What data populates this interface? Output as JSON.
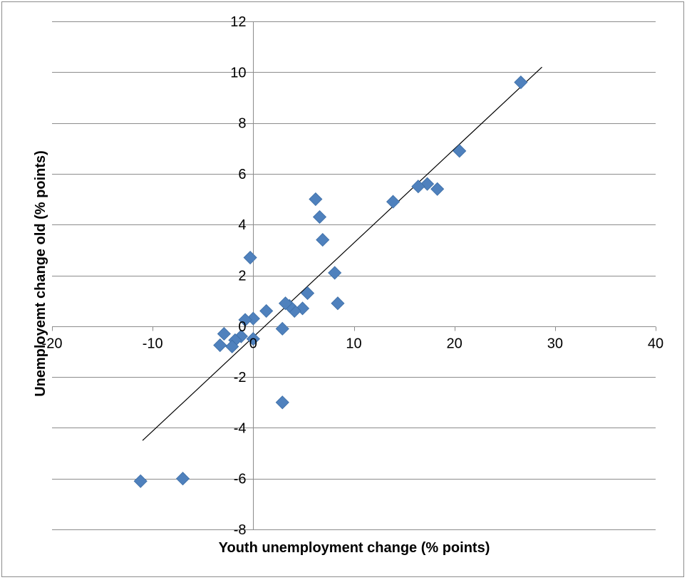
{
  "chart_data": {
    "type": "scatter",
    "xlabel": "Youth unemployment change (% points)",
    "ylabel": "Unemployemt change old (% points)",
    "xlim": [
      -20,
      40
    ],
    "ylim": [
      -8,
      12
    ],
    "x_ticks": [
      -20,
      -10,
      0,
      10,
      20,
      30,
      40
    ],
    "y_ticks": [
      -8,
      -6,
      -4,
      -2,
      0,
      2,
      4,
      6,
      8,
      10,
      12
    ],
    "x_tick_labels": [
      "-20",
      "-10",
      "0",
      "10",
      "20",
      "30",
      "40"
    ],
    "y_tick_labels": [
      "-8",
      "-6",
      "-4",
      "-2",
      "0",
      "2",
      "4",
      "6",
      "8",
      "10",
      "12"
    ],
    "grid": "horizontal",
    "marker": "diamond",
    "marker_color": "#4f81bd",
    "trendline_color": "#000000",
    "trendline": {
      "x": [
        -11,
        28.7
      ],
      "y": [
        -4.5,
        10.2
      ]
    },
    "points": [
      {
        "x": 26.6,
        "y": 9.6
      },
      {
        "x": 20.5,
        "y": 6.9
      },
      {
        "x": 18.3,
        "y": 5.4
      },
      {
        "x": 17.3,
        "y": 5.6
      },
      {
        "x": 16.4,
        "y": 5.5
      },
      {
        "x": 13.9,
        "y": 4.9
      },
      {
        "x": 6.2,
        "y": 5.0
      },
      {
        "x": 6.6,
        "y": 4.3
      },
      {
        "x": 6.9,
        "y": 3.4
      },
      {
        "x": 8.1,
        "y": 2.1
      },
      {
        "x": 8.4,
        "y": 0.9
      },
      {
        "x": 5.4,
        "y": 1.3
      },
      {
        "x": 4.9,
        "y": 0.7
      },
      {
        "x": 4.1,
        "y": 0.6
      },
      {
        "x": 3.6,
        "y": 0.8
      },
      {
        "x": 3.2,
        "y": 0.9
      },
      {
        "x": 2.9,
        "y": -0.1
      },
      {
        "x": 2.9,
        "y": -3.0
      },
      {
        "x": 1.3,
        "y": 0.6
      },
      {
        "x": 0.0,
        "y": 0.3
      },
      {
        "x": 0.0,
        "y": -0.5
      },
      {
        "x": -0.3,
        "y": 2.7
      },
      {
        "x": -0.8,
        "y": 0.25
      },
      {
        "x": -1.2,
        "y": -0.4
      },
      {
        "x": -1.8,
        "y": -0.55
      },
      {
        "x": -2.1,
        "y": -0.8
      },
      {
        "x": -2.9,
        "y": -0.3
      },
      {
        "x": -3.3,
        "y": -0.75
      },
      {
        "x": -7.0,
        "y": -6.0
      },
      {
        "x": -11.2,
        "y": -6.1
      }
    ]
  }
}
